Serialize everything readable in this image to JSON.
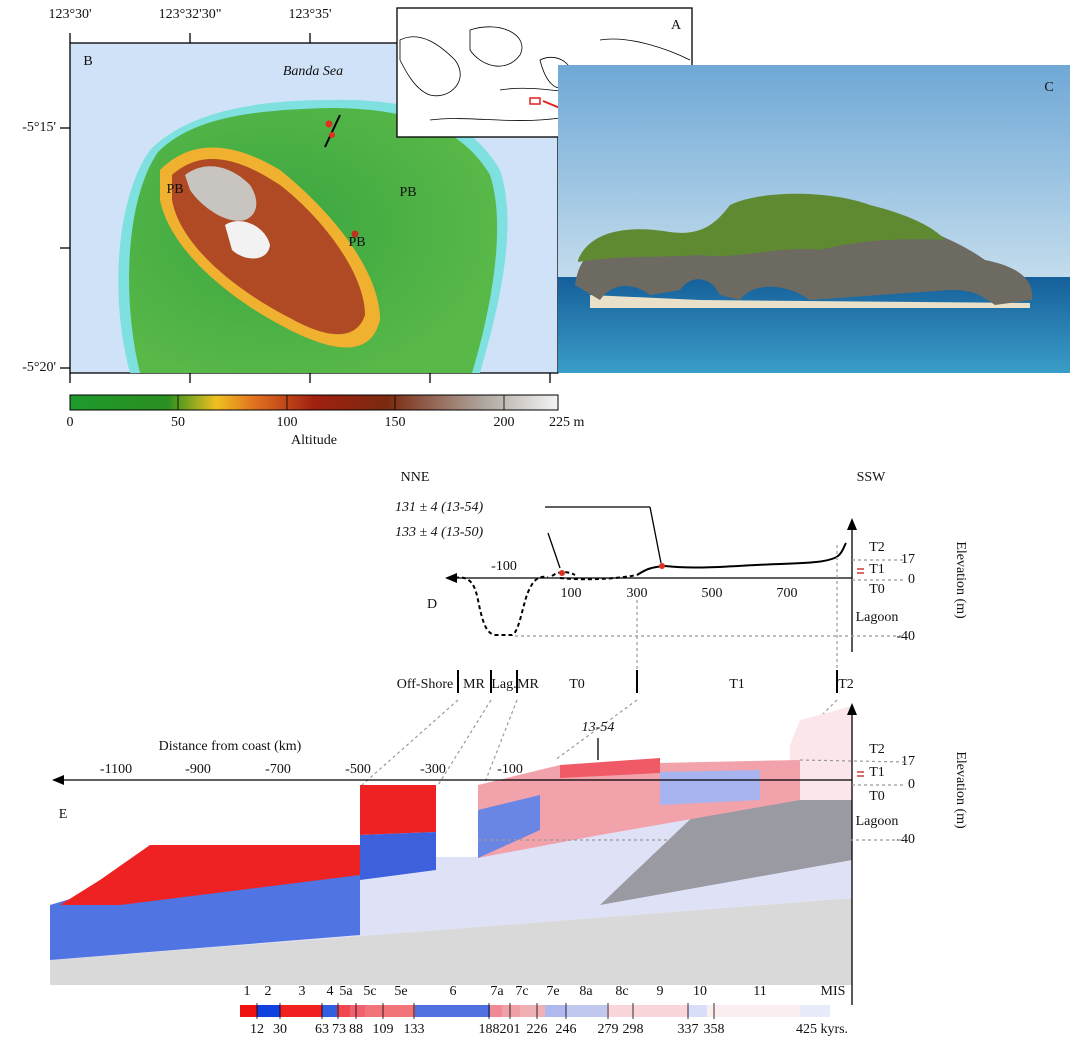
{
  "panel_a": {
    "label": "A"
  },
  "panel_b": {
    "label": "B",
    "sea": "Banda Sea",
    "lon_ticks": [
      "123°30'",
      "123°32'30\"",
      "123°35'"
    ],
    "lat_ticks": [
      "-5°15'",
      "-5°20'"
    ],
    "units": [
      "PB",
      "PB",
      "PB"
    ],
    "colorbar": {
      "ticks": [
        0,
        50,
        100,
        150,
        200,
        "225 m"
      ],
      "title": "Altitude"
    }
  },
  "panel_c": {
    "label": "C"
  },
  "panel_d": {
    "label": "D",
    "left_dir": "NNE",
    "right_dir": "SSW",
    "ages": [
      "131 ± 4  (13-54)",
      "133 ± 4  (13-50)"
    ],
    "x_ticks": [
      -100,
      100,
      300,
      500,
      700
    ],
    "terraces": [
      "T2",
      "T1",
      "T0",
      "Lagoon"
    ],
    "elev_ticks": [
      17,
      0,
      -40
    ],
    "y_title": "Elevation (m)",
    "zones": [
      "Off-Shore",
      "MR",
      "Lag.",
      "MR",
      "T0",
      "T1",
      "T2"
    ]
  },
  "panel_e": {
    "label": "E",
    "x_title": "Distance from coast (km)",
    "x_ticks": [
      -1100,
      -900,
      -700,
      -500,
      -300,
      -100
    ],
    "sample": "13-54",
    "terraces": [
      "T2",
      "T1",
      "T0",
      "Lagoon"
    ],
    "elev_ticks": [
      17,
      0,
      -40
    ],
    "y_title": "Elevation (m)"
  },
  "legend": {
    "stages": [
      "1",
      "2",
      "3",
      "4",
      "5a",
      "5c",
      "5e",
      "6",
      "7a",
      "7c",
      "7e",
      "8a",
      "8c",
      "9",
      "10",
      "11",
      "MIS"
    ],
    "ages": [
      12,
      30,
      63,
      73,
      88,
      109,
      133,
      188,
      201,
      226,
      246,
      279,
      298,
      337,
      358,
      "425 kyrs."
    ]
  }
}
